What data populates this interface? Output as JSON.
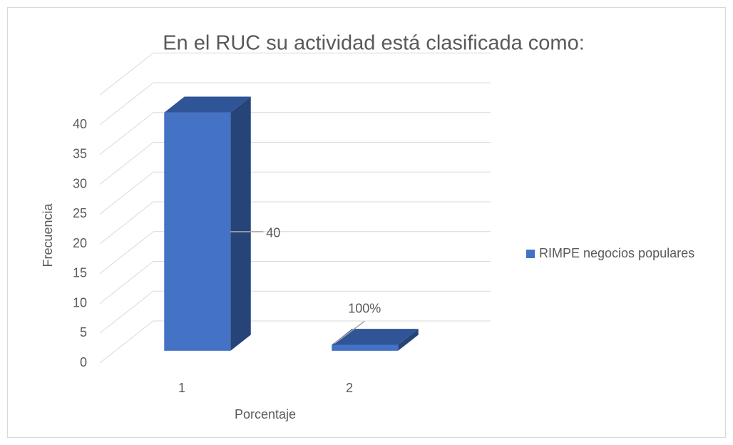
{
  "chart_data": {
    "type": "bar3d",
    "title": "En el RUC su actividad está clasificada como:",
    "x_label": "Porcentaje",
    "y_label": "Frecuencia",
    "categories": [
      "1",
      "2"
    ],
    "series": [
      {
        "name": "RIMPE negocios populares",
        "color": "#4472c4",
        "values": [
          40,
          1
        ],
        "value_labels": [
          "40",
          "100%"
        ]
      }
    ],
    "ylim": [
      0,
      45
    ],
    "yticks": [
      0,
      5,
      10,
      15,
      20,
      25,
      30,
      35,
      40
    ],
    "grid": true,
    "legend": "right"
  }
}
